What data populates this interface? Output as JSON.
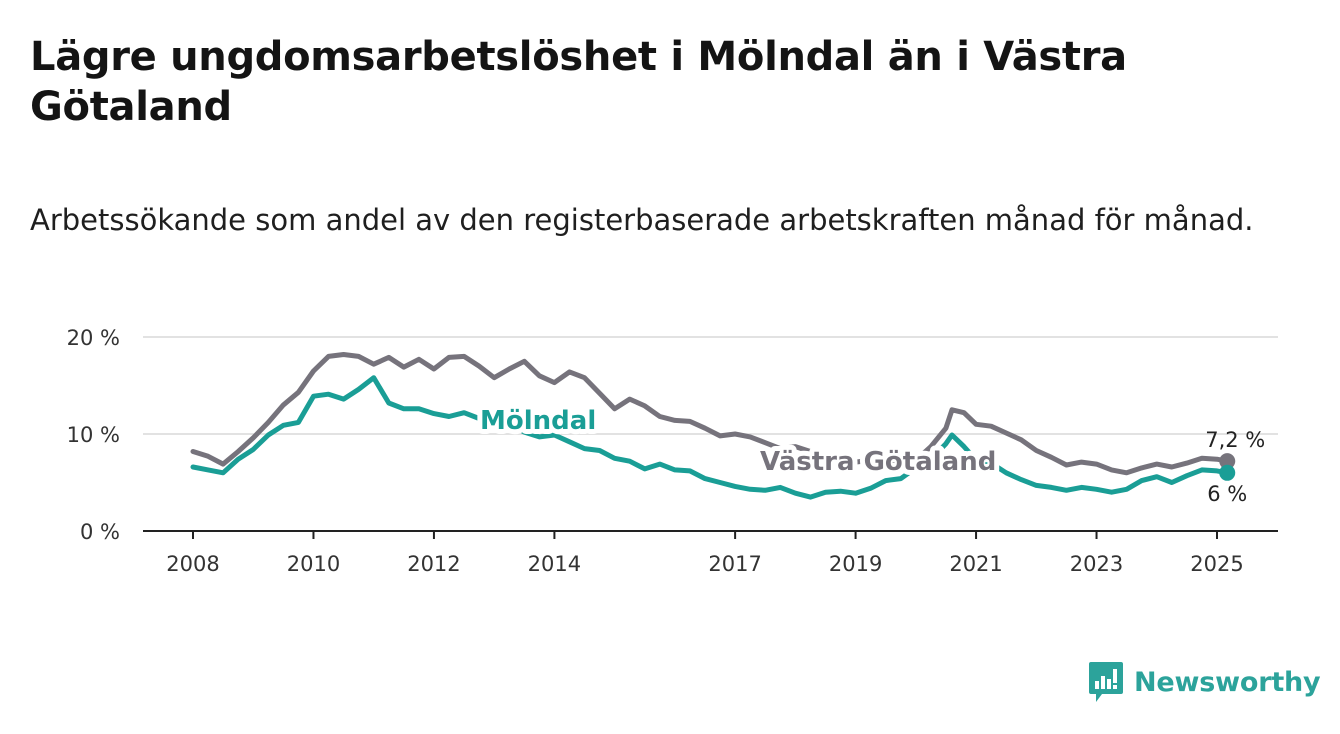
{
  "title": "Lägre ungdomsarbetslöshet i Mölndal än i Västra Götaland",
  "subtitle": "Arbetssökande som andel av den registerbaserade arbetskraften månad för månad.",
  "brand": {
    "name": "Newsworthy",
    "icon": "newsworthy-logo-icon"
  },
  "colors": {
    "molndal": "#1a9e96",
    "vastra_gotaland": "#76737c",
    "grid": "#d9d9d9",
    "axis": "#222222",
    "brand": "#2ca39b"
  },
  "chart_data": {
    "type": "line",
    "title": "",
    "xlabel": "",
    "ylabel": "",
    "ylim": [
      0,
      20
    ],
    "y_ticks": [
      "0 %",
      "10 %",
      "20 %"
    ],
    "y_tick_values": [
      0,
      10,
      20
    ],
    "x_ticks": [
      "2008",
      "2010",
      "2012",
      "2014",
      "2017",
      "2019",
      "2021",
      "2023",
      "2025"
    ],
    "x_tick_values": [
      2008,
      2010,
      2012,
      2014,
      2017,
      2019,
      2021,
      2023,
      2025
    ],
    "xlim": [
      2007.8,
      2026
    ],
    "grid": "horizontal",
    "series": [
      {
        "name": "Västra Götaland",
        "color": "#76737c",
        "end_label": "7,2 %",
        "points": [
          [
            2008.0,
            8.2
          ],
          [
            2008.25,
            7.7
          ],
          [
            2008.5,
            6.9
          ],
          [
            2008.75,
            8.2
          ],
          [
            2009.0,
            9.6
          ],
          [
            2009.25,
            11.2
          ],
          [
            2009.5,
            13.0
          ],
          [
            2009.75,
            14.3
          ],
          [
            2010.0,
            16.5
          ],
          [
            2010.25,
            18.0
          ],
          [
            2010.5,
            18.2
          ],
          [
            2010.75,
            18.0
          ],
          [
            2011.0,
            17.2
          ],
          [
            2011.25,
            17.9
          ],
          [
            2011.5,
            16.9
          ],
          [
            2011.75,
            17.7
          ],
          [
            2012.0,
            16.7
          ],
          [
            2012.25,
            17.9
          ],
          [
            2012.5,
            18.0
          ],
          [
            2012.75,
            17.0
          ],
          [
            2013.0,
            15.8
          ],
          [
            2013.25,
            16.7
          ],
          [
            2013.5,
            17.5
          ],
          [
            2013.75,
            16.0
          ],
          [
            2014.0,
            15.3
          ],
          [
            2014.25,
            16.4
          ],
          [
            2014.5,
            15.8
          ],
          [
            2014.75,
            14.2
          ],
          [
            2015.0,
            12.6
          ],
          [
            2015.25,
            13.6
          ],
          [
            2015.5,
            12.9
          ],
          [
            2015.75,
            11.8
          ],
          [
            2016.0,
            11.4
          ],
          [
            2016.25,
            11.3
          ],
          [
            2016.5,
            10.6
          ],
          [
            2016.75,
            9.8
          ],
          [
            2017.0,
            10.0
          ],
          [
            2017.25,
            9.7
          ],
          [
            2017.5,
            9.1
          ],
          [
            2017.75,
            8.5
          ],
          [
            2018.0,
            8.7
          ],
          [
            2018.25,
            8.2
          ],
          [
            2018.5,
            7.6
          ],
          [
            2018.75,
            7.5
          ],
          [
            2019.0,
            7.1
          ],
          [
            2019.25,
            7.3
          ],
          [
            2019.5,
            7.2
          ],
          [
            2019.75,
            7.4
          ],
          [
            2020.0,
            7.3
          ],
          [
            2020.25,
            8.7
          ],
          [
            2020.5,
            10.6
          ],
          [
            2020.6,
            12.5
          ],
          [
            2020.8,
            12.2
          ],
          [
            2021.0,
            11.0
          ],
          [
            2021.25,
            10.8
          ],
          [
            2021.5,
            10.1
          ],
          [
            2021.75,
            9.4
          ],
          [
            2022.0,
            8.3
          ],
          [
            2022.25,
            7.6
          ],
          [
            2022.5,
            6.8
          ],
          [
            2022.75,
            7.1
          ],
          [
            2023.0,
            6.9
          ],
          [
            2023.25,
            6.3
          ],
          [
            2023.5,
            6.0
          ],
          [
            2023.75,
            6.5
          ],
          [
            2024.0,
            6.9
          ],
          [
            2024.25,
            6.6
          ],
          [
            2024.5,
            7.0
          ],
          [
            2024.75,
            7.5
          ],
          [
            2025.0,
            7.4
          ],
          [
            2025.17,
            7.2
          ]
        ]
      },
      {
        "name": "Mölndal",
        "color": "#1a9e96",
        "end_label": "6 %",
        "points": [
          [
            2008.0,
            6.6
          ],
          [
            2008.25,
            6.3
          ],
          [
            2008.5,
            6.0
          ],
          [
            2008.75,
            7.4
          ],
          [
            2009.0,
            8.4
          ],
          [
            2009.25,
            9.9
          ],
          [
            2009.5,
            10.9
          ],
          [
            2009.75,
            11.2
          ],
          [
            2010.0,
            13.9
          ],
          [
            2010.25,
            14.1
          ],
          [
            2010.5,
            13.6
          ],
          [
            2010.75,
            14.6
          ],
          [
            2011.0,
            15.8
          ],
          [
            2011.25,
            13.2
          ],
          [
            2011.5,
            12.6
          ],
          [
            2011.75,
            12.6
          ],
          [
            2012.0,
            12.1
          ],
          [
            2012.25,
            11.8
          ],
          [
            2012.5,
            12.2
          ],
          [
            2012.75,
            11.6
          ],
          [
            2013.0,
            11.3
          ],
          [
            2013.25,
            11.1
          ],
          [
            2013.5,
            10.2
          ],
          [
            2013.75,
            9.7
          ],
          [
            2014.0,
            9.9
          ],
          [
            2014.25,
            9.2
          ],
          [
            2014.5,
            8.5
          ],
          [
            2014.75,
            8.3
          ],
          [
            2015.0,
            7.5
          ],
          [
            2015.25,
            7.2
          ],
          [
            2015.5,
            6.4
          ],
          [
            2015.75,
            6.9
          ],
          [
            2016.0,
            6.3
          ],
          [
            2016.25,
            6.2
          ],
          [
            2016.5,
            5.4
          ],
          [
            2016.75,
            5.0
          ],
          [
            2017.0,
            4.6
          ],
          [
            2017.25,
            4.3
          ],
          [
            2017.5,
            4.2
          ],
          [
            2017.75,
            4.5
          ],
          [
            2018.0,
            3.9
          ],
          [
            2018.25,
            3.5
          ],
          [
            2018.5,
            4.0
          ],
          [
            2018.75,
            4.1
          ],
          [
            2019.0,
            3.9
          ],
          [
            2019.25,
            4.4
          ],
          [
            2019.5,
            5.2
          ],
          [
            2019.75,
            5.4
          ],
          [
            2020.0,
            6.5
          ],
          [
            2020.25,
            7.4
          ],
          [
            2020.5,
            9.0
          ],
          [
            2020.6,
            9.9
          ],
          [
            2020.8,
            8.7
          ],
          [
            2021.0,
            7.3
          ],
          [
            2021.25,
            7.0
          ],
          [
            2021.5,
            6.0
          ],
          [
            2021.75,
            5.3
          ],
          [
            2022.0,
            4.7
          ],
          [
            2022.25,
            4.5
          ],
          [
            2022.5,
            4.2
          ],
          [
            2022.75,
            4.5
          ],
          [
            2023.0,
            4.3
          ],
          [
            2023.25,
            4.0
          ],
          [
            2023.5,
            4.3
          ],
          [
            2023.75,
            5.2
          ],
          [
            2024.0,
            5.6
          ],
          [
            2024.25,
            5.0
          ],
          [
            2024.5,
            5.7
          ],
          [
            2024.75,
            6.3
          ],
          [
            2025.0,
            6.2
          ],
          [
            2025.17,
            6.0
          ]
        ]
      }
    ]
  }
}
